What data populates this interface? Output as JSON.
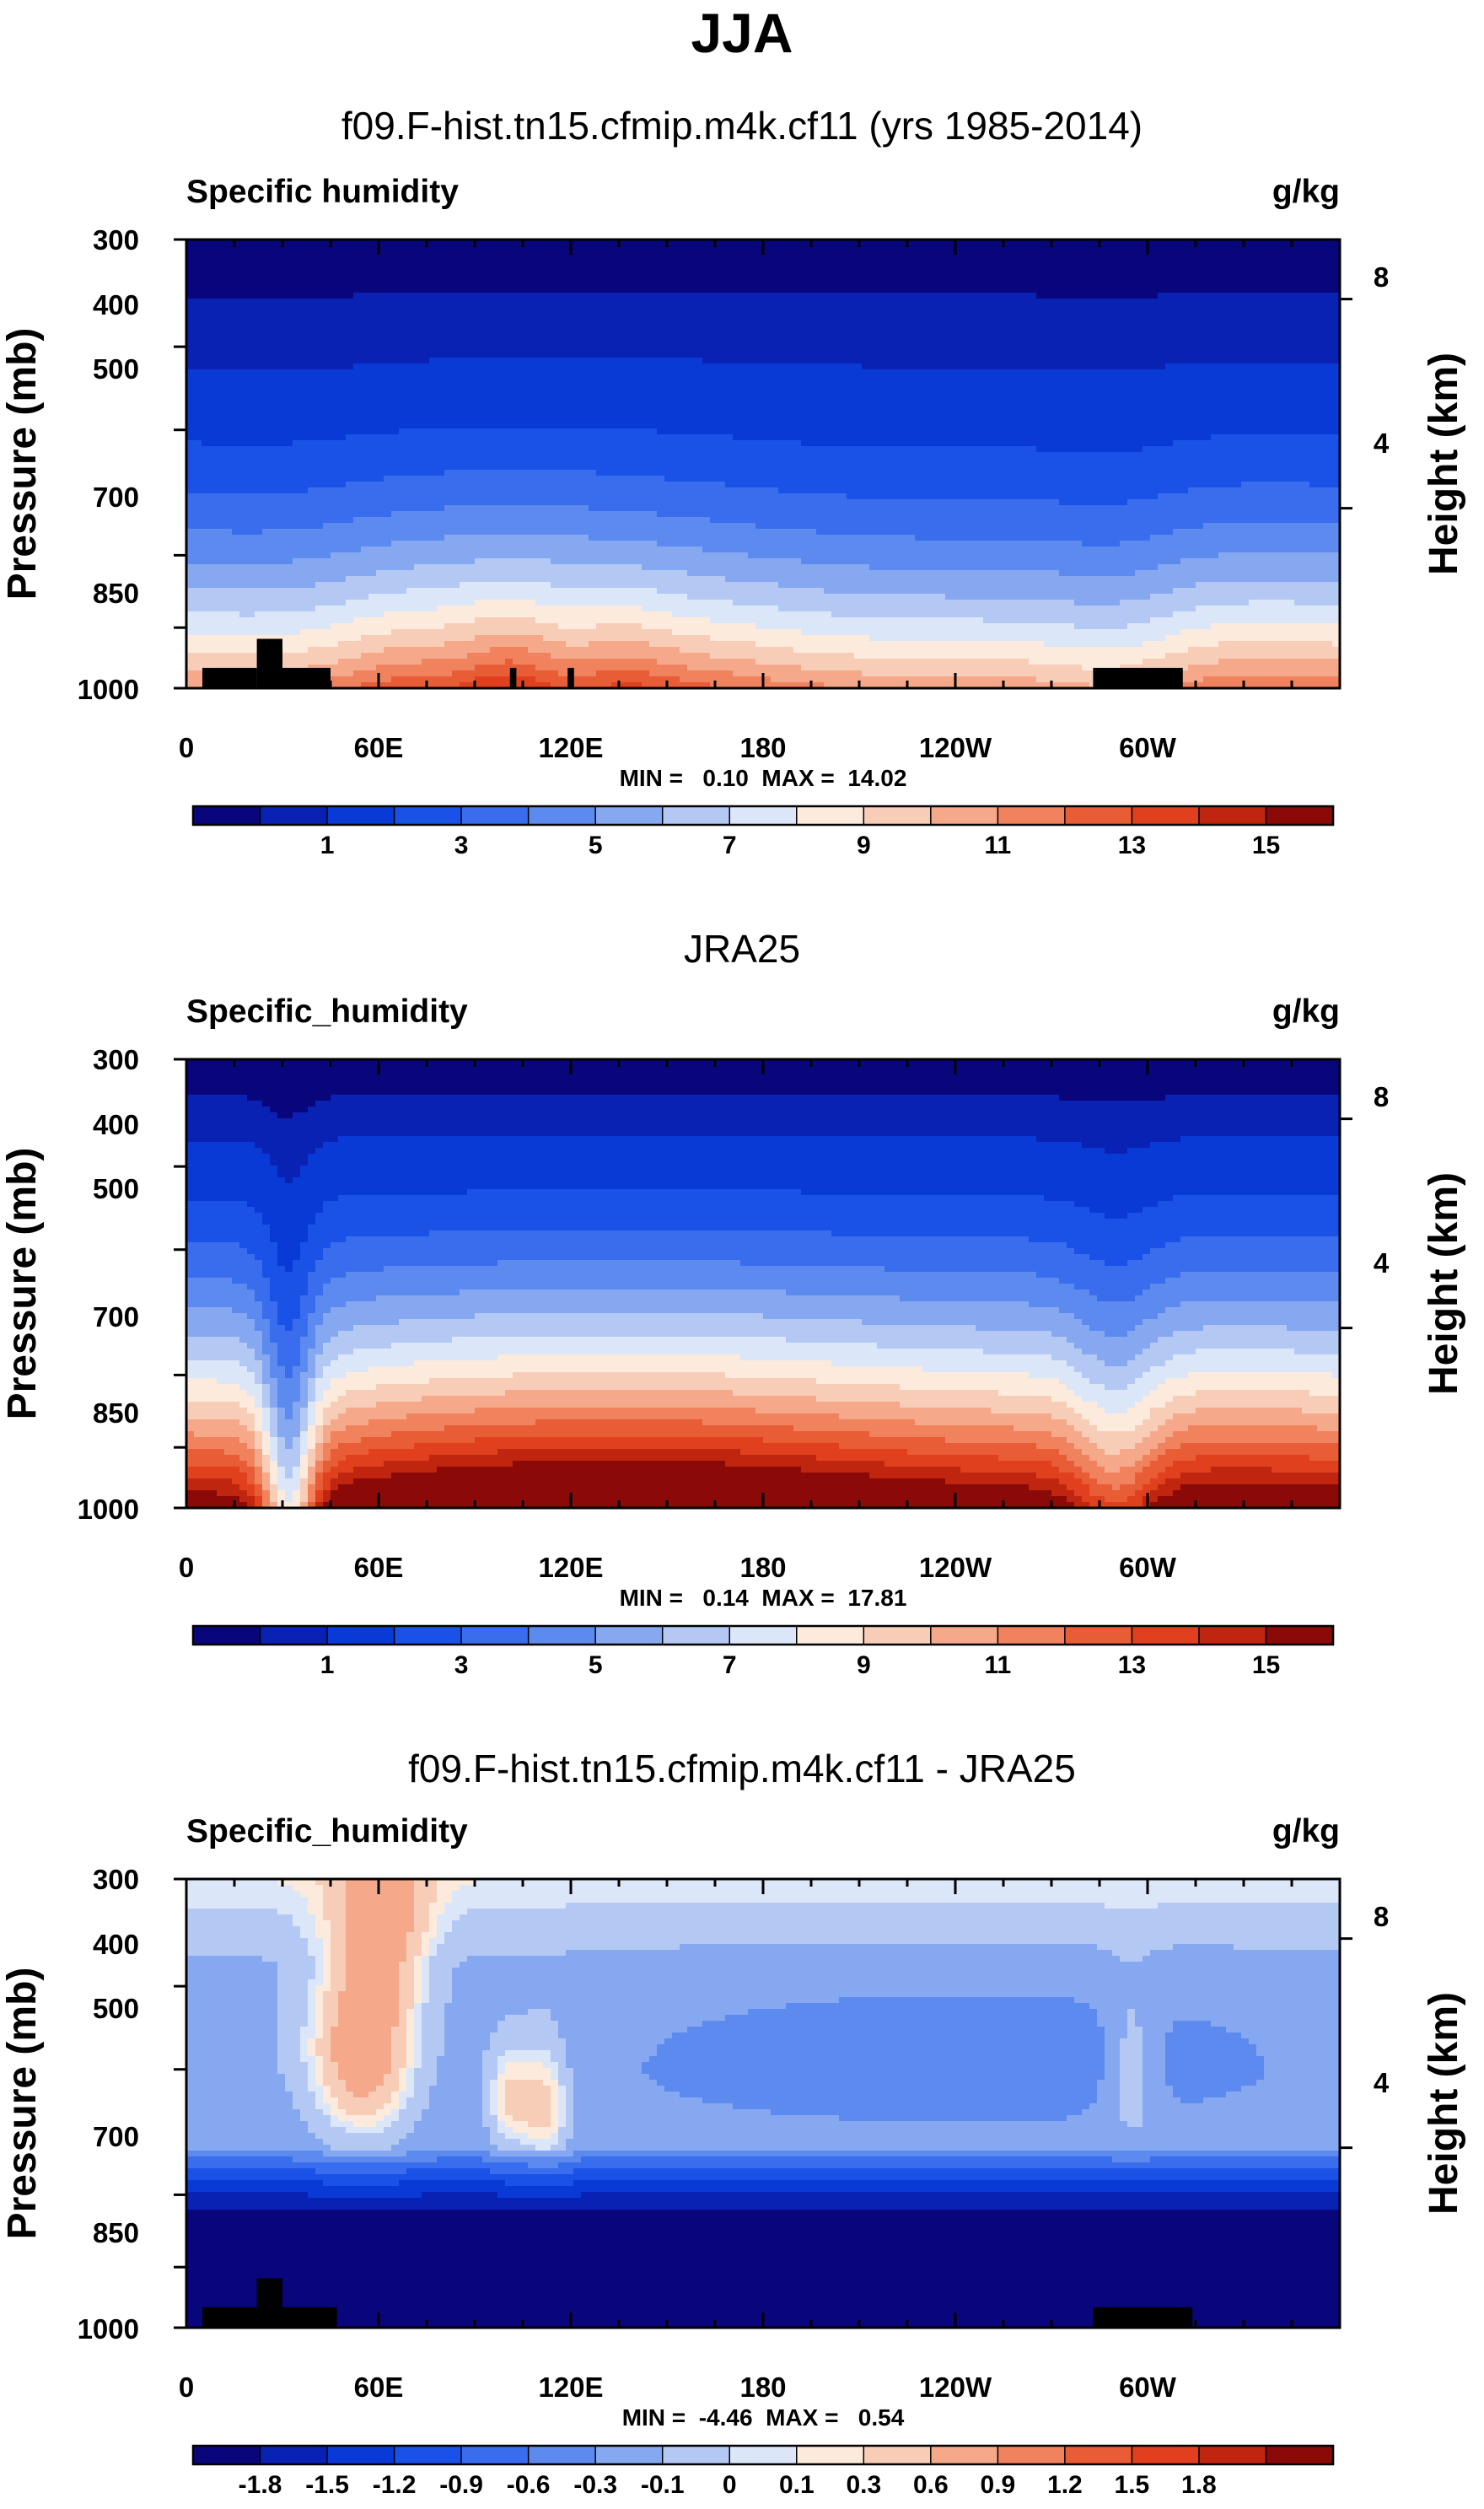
{
  "figure_title": "JJA",
  "colors": {
    "full_field": [
      "#08067a",
      "#0a22b3",
      "#0a3ad6",
      "#1a52e8",
      "#3a6ded",
      "#5c8aee",
      "#86a8f0",
      "#b3c9f4",
      "#dbe6f9",
      "#fcebdc",
      "#f8cdb8",
      "#f5a98a",
      "#f0825d",
      "#e85d35",
      "#e0401d",
      "#c0250f",
      "#8b0906"
    ],
    "difference": [
      "#08067a",
      "#0a22b3",
      "#0a3ad6",
      "#1a52e8",
      "#3a6ded",
      "#5c8aee",
      "#86a8f0",
      "#b3c9f4",
      "#dbe6f9",
      "#fcebdc",
      "#f8cdb8",
      "#f5a98a",
      "#f0825d",
      "#e85d35",
      "#e0401d",
      "#c0250f",
      "#8b0906"
    ],
    "terrain": "#000000"
  },
  "axes": {
    "pressure_label": "Pressure (mb)",
    "height_label": "Height (km)",
    "pressure_ticks": [
      "300",
      "400",
      "500",
      "700",
      "850",
      "1000"
    ],
    "height_ticks": [
      "8",
      "4"
    ],
    "lon_ticks": [
      "0",
      "60E",
      "120E",
      "180",
      "120W",
      "60W"
    ]
  },
  "chart_data": [
    {
      "type": "heatmap",
      "title": "f09.F-hist.tn15.cfmip.m4k.cf11 (yrs 1985-2014)",
      "left_label": "Specific humidity",
      "units": "g/kg",
      "minmax": "MIN =   0.10  MAX =  14.02",
      "x": "longitude 0-360",
      "y": "pressure 300-1000 mb",
      "contour_levels": [
        0.5,
        1,
        2,
        3,
        4,
        5,
        6,
        7,
        8,
        9,
        10,
        11,
        12,
        13,
        14,
        15
      ],
      "colorbar_labels": [
        "1",
        "3",
        "5",
        "7",
        "9",
        "11",
        "13",
        "15"
      ]
    },
    {
      "type": "heatmap",
      "title": "JRA25",
      "left_label": "Specific_humidity",
      "units": "g/kg",
      "minmax": "MIN =   0.14  MAX =  17.81",
      "x": "longitude 0-360",
      "y": "pressure 300-1000 mb",
      "contour_levels": [
        0.5,
        1,
        2,
        3,
        4,
        5,
        6,
        7,
        8,
        9,
        10,
        11,
        12,
        13,
        14,
        15
      ],
      "colorbar_labels": [
        "1",
        "3",
        "5",
        "7",
        "9",
        "11",
        "13",
        "15"
      ]
    },
    {
      "type": "heatmap",
      "title": "f09.F-hist.tn15.cfmip.m4k.cf11 - JRA25",
      "left_label": "Specific_humidity",
      "units": "g/kg",
      "minmax": "MIN =  -4.46  MAX =   0.54",
      "x": "longitude 0-360",
      "y": "pressure 300-1000 mb",
      "contour_levels": [
        -2.1,
        -1.8,
        -1.5,
        -1.2,
        -0.9,
        -0.6,
        -0.3,
        -0.1,
        0,
        0.1,
        0.3,
        0.6,
        0.9,
        1.2,
        1.5,
        1.8
      ],
      "colorbar_labels": [
        "-1.8",
        "-1.5",
        "-1.2",
        "-0.9",
        "-0.6",
        "-0.3",
        "-0.1",
        "0",
        "0.1",
        "0.3",
        "0.6",
        "0.9",
        "1.2",
        "1.5",
        "1.8"
      ]
    }
  ]
}
